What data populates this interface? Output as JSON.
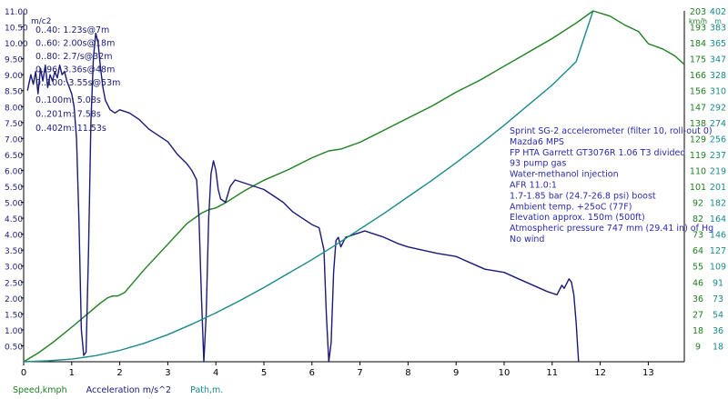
{
  "chart_data": {
    "type": "line",
    "x_ticks": [
      "0",
      "1",
      "2",
      "3",
      "4",
      "5",
      "6",
      "7",
      "8",
      "9",
      "10",
      "11",
      "12",
      "13"
    ],
    "xlim": [
      0,
      13.75
    ],
    "left_axis": {
      "unit": "m/c2",
      "ticks": [
        "0.50",
        "1.00",
        "1.50",
        "2.00",
        "2.50",
        "3.00",
        "3.50",
        "4.00",
        "4.50",
        "5.00",
        "5.50",
        "6.00",
        "6.50",
        "7.00",
        "7.50",
        "8.00",
        "8.50",
        "9.00",
        "9.50",
        "10.00",
        "10.50"
      ],
      "top_label": "11.00",
      "ylim": [
        0,
        11
      ]
    },
    "speed_axis": {
      "unit": "km/h",
      "ticks": [
        "9",
        "18",
        "27",
        "36",
        "46",
        "55",
        "64",
        "73",
        "82",
        "92",
        "101",
        "110",
        "119",
        "129",
        "138",
        "147",
        "156",
        "166",
        "175",
        "184",
        "193"
      ],
      "top_label": "203",
      "ylim": [
        0,
        203
      ]
    },
    "path_axis": {
      "unit": "m",
      "ticks": [
        "18",
        "36",
        "54",
        "73",
        "91",
        "109",
        "127",
        "146",
        "164",
        "182",
        "201",
        "219",
        "237",
        "256",
        "274",
        "292",
        "310",
        "328",
        "347",
        "365",
        "383"
      ],
      "top_label": "402",
      "ylim": [
        0,
        402
      ]
    },
    "series": [
      {
        "name": "Speed,kmph",
        "axis": "speed",
        "color": "#1f7f1f",
        "points": [
          [
            0,
            0
          ],
          [
            0.3,
            5
          ],
          [
            0.6,
            11
          ],
          [
            1.0,
            20
          ],
          [
            1.3,
            27
          ],
          [
            1.6,
            34
          ],
          [
            1.75,
            37
          ],
          [
            1.85,
            38
          ],
          [
            1.95,
            38
          ],
          [
            2.1,
            40
          ],
          [
            2.5,
            53
          ],
          [
            3.0,
            68
          ],
          [
            3.4,
            80
          ],
          [
            3.7,
            86
          ],
          [
            3.85,
            88
          ],
          [
            4.0,
            89
          ],
          [
            4.2,
            92
          ],
          [
            4.6,
            99
          ],
          [
            5.0,
            105
          ],
          [
            5.5,
            111
          ],
          [
            6.0,
            118
          ],
          [
            6.35,
            122
          ],
          [
            6.6,
            123
          ],
          [
            7.0,
            127
          ],
          [
            7.5,
            134
          ],
          [
            8.0,
            141
          ],
          [
            8.5,
            148
          ],
          [
            9.0,
            156
          ],
          [
            9.5,
            163
          ],
          [
            10.0,
            171
          ],
          [
            10.5,
            179
          ],
          [
            11.0,
            187
          ],
          [
            11.5,
            196
          ],
          [
            11.85,
            203
          ],
          [
            12.2,
            200
          ],
          [
            12.5,
            195
          ],
          [
            12.8,
            191
          ],
          [
            13.0,
            184
          ],
          [
            13.3,
            181
          ],
          [
            13.55,
            177
          ],
          [
            13.75,
            172
          ]
        ]
      },
      {
        "name": "Acceleration m/s^2",
        "axis": "left",
        "color": "#1a1a7a",
        "points": [
          [
            0.08,
            8.5
          ],
          [
            0.15,
            9.0
          ],
          [
            0.2,
            8.7
          ],
          [
            0.25,
            9.1
          ],
          [
            0.3,
            8.4
          ],
          [
            0.35,
            9.2
          ],
          [
            0.4,
            8.8
          ],
          [
            0.45,
            9.3
          ],
          [
            0.5,
            8.6
          ],
          [
            0.55,
            9.0
          ],
          [
            0.6,
            8.8
          ],
          [
            0.65,
            9.1
          ],
          [
            0.7,
            8.9
          ],
          [
            0.75,
            9.3
          ],
          [
            0.8,
            9.0
          ],
          [
            0.85,
            9.1
          ],
          [
            0.9,
            8.8
          ],
          [
            0.95,
            8.6
          ],
          [
            1.0,
            8.4
          ],
          [
            1.05,
            8.0
          ],
          [
            1.1,
            7.0
          ],
          [
            1.15,
            4.5
          ],
          [
            1.2,
            1.0
          ],
          [
            1.25,
            0.2
          ],
          [
            1.3,
            0.3
          ],
          [
            1.35,
            3.5
          ],
          [
            1.4,
            7.5
          ],
          [
            1.45,
            9.5
          ],
          [
            1.5,
            10.3
          ],
          [
            1.55,
            10.0
          ],
          [
            1.6,
            9.2
          ],
          [
            1.65,
            8.6
          ],
          [
            1.7,
            8.2
          ],
          [
            1.8,
            7.9
          ],
          [
            1.9,
            7.8
          ],
          [
            2.0,
            7.9
          ],
          [
            2.2,
            7.8
          ],
          [
            2.4,
            7.6
          ],
          [
            2.6,
            7.3
          ],
          [
            2.8,
            7.1
          ],
          [
            3.0,
            6.9
          ],
          [
            3.2,
            6.5
          ],
          [
            3.4,
            6.2
          ],
          [
            3.5,
            6.0
          ],
          [
            3.6,
            5.7
          ],
          [
            3.65,
            4.5
          ],
          [
            3.7,
            2.0
          ],
          [
            3.75,
            0.0
          ],
          [
            3.8,
            1.5
          ],
          [
            3.85,
            4.5
          ],
          [
            3.9,
            5.9
          ],
          [
            3.95,
            6.3
          ],
          [
            4.0,
            6.0
          ],
          [
            4.05,
            5.4
          ],
          [
            4.1,
            5.1
          ],
          [
            4.2,
            5.0
          ],
          [
            4.3,
            5.5
          ],
          [
            4.4,
            5.7
          ],
          [
            4.6,
            5.6
          ],
          [
            4.8,
            5.5
          ],
          [
            5.0,
            5.4
          ],
          [
            5.2,
            5.2
          ],
          [
            5.4,
            5.0
          ],
          [
            5.6,
            4.7
          ],
          [
            5.8,
            4.5
          ],
          [
            6.0,
            4.3
          ],
          [
            6.15,
            4.2
          ],
          [
            6.25,
            3.5
          ],
          [
            6.3,
            1.5
          ],
          [
            6.35,
            0.0
          ],
          [
            6.4,
            0.6
          ],
          [
            6.45,
            2.8
          ],
          [
            6.5,
            3.8
          ],
          [
            6.55,
            3.9
          ],
          [
            6.6,
            3.6
          ],
          [
            6.7,
            3.9
          ],
          [
            6.9,
            4.0
          ],
          [
            7.1,
            4.1
          ],
          [
            7.3,
            4.0
          ],
          [
            7.5,
            3.9
          ],
          [
            7.8,
            3.7
          ],
          [
            8.0,
            3.6
          ],
          [
            8.3,
            3.5
          ],
          [
            8.6,
            3.4
          ],
          [
            9.0,
            3.3
          ],
          [
            9.3,
            3.1
          ],
          [
            9.6,
            2.9
          ],
          [
            10.0,
            2.8
          ],
          [
            10.3,
            2.6
          ],
          [
            10.6,
            2.4
          ],
          [
            10.9,
            2.2
          ],
          [
            11.1,
            2.1
          ],
          [
            11.2,
            2.4
          ],
          [
            11.25,
            2.3
          ],
          [
            11.35,
            2.6
          ],
          [
            11.4,
            2.5
          ],
          [
            11.45,
            2.1
          ],
          [
            11.5,
            1.2
          ],
          [
            11.55,
            0.0
          ]
        ]
      },
      {
        "name": "Path,m.",
        "axis": "path",
        "color": "#1a8a8a",
        "points": [
          [
            0,
            0
          ],
          [
            0.5,
            1
          ],
          [
            1.0,
            3
          ],
          [
            1.5,
            7
          ],
          [
            2.0,
            13
          ],
          [
            2.5,
            21
          ],
          [
            3.0,
            31
          ],
          [
            3.5,
            43
          ],
          [
            4.0,
            56
          ],
          [
            4.5,
            70
          ],
          [
            5.0,
            85
          ],
          [
            5.5,
            101
          ],
          [
            6.0,
            117
          ],
          [
            6.5,
            134
          ],
          [
            7.0,
            152
          ],
          [
            7.5,
            170
          ],
          [
            8.0,
            189
          ],
          [
            8.5,
            208
          ],
          [
            9.0,
            228
          ],
          [
            9.5,
            249
          ],
          [
            10.0,
            271
          ],
          [
            10.5,
            294
          ],
          [
            11.0,
            317
          ],
          [
            11.5,
            344
          ],
          [
            11.85,
            402
          ]
        ]
      }
    ],
    "legend": [
      "Speed,kmph",
      "Acceleration m/s^2",
      "Path,m."
    ],
    "grid": false,
    "annotations_left": [
      "0..40: 1.23s@7m",
      "0..60: 2.00s@18m",
      "0..80: 2.7/s@32m",
      "0..96: 3.36s@48m",
      "0..100: 3.55s@53m",
      "0..100m: 5.08s",
      "0..201m: 7.58s",
      "0..402m: 11.53s"
    ],
    "annotations_right": [
      "Sprint SG-2 accelerometer (filter 10, roll-out 0)",
      "Mazda6 MPS",
      "FP HTA Garrett GT3076R 1.06 T3 divided",
      "93 pump gas",
      "Water-methanol injection",
      "AFR 11.0:1",
      "1.7-1.85 bar (24.7-26.8 psi) boost",
      "Ambient temp. +25oC (77F)",
      "Elevation approx. 150m (500ft)",
      "Atmospheric pressure 747 mm (29.41 in) of Hg",
      "No wind"
    ]
  }
}
